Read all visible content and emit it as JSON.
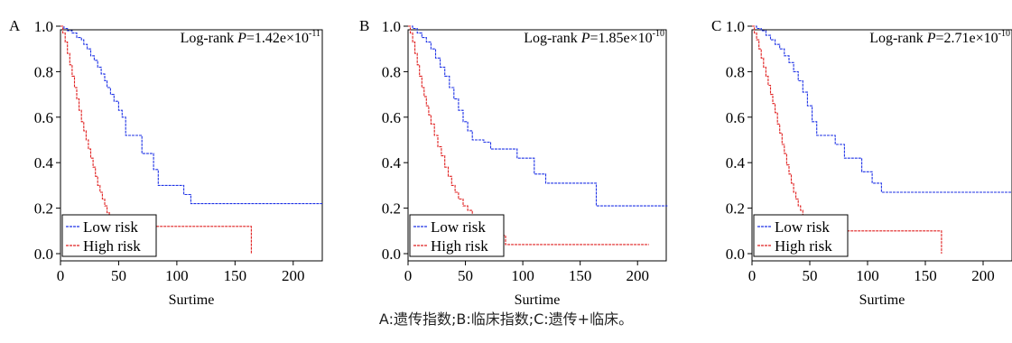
{
  "caption": "A:遗传指数;B:临床指数;C:遗传+临床。",
  "colors": {
    "low": "#1f33e6",
    "high": "#e02020",
    "axis": "#000000"
  },
  "chart_data": [
    {
      "panel": "A",
      "type": "line",
      "step": true,
      "xlabel": "Surtime",
      "ylabel": "",
      "xlim": [
        0,
        225
      ],
      "ylim": [
        0,
        1.0
      ],
      "xticks": [
        "0",
        "50",
        "100",
        "150",
        "200"
      ],
      "yticks": [
        "0.0",
        "0.2",
        "0.4",
        "0.6",
        "0.8",
        "1.0"
      ],
      "annotation": {
        "prefix": "Log-rank ",
        "italic": "P",
        "value": "=1.42e×10",
        "exp": "-11"
      },
      "legend": {
        "position": "bottom-left"
      },
      "series": [
        {
          "name": "Low risk",
          "color_key": "low",
          "x": [
            0,
            3,
            6,
            10,
            14,
            18,
            20,
            23,
            26,
            29,
            32,
            35,
            38,
            40,
            43,
            46,
            50,
            53,
            56,
            60,
            64,
            70,
            77,
            80,
            84,
            90,
            100,
            106,
            112,
            225
          ],
          "y": [
            1.0,
            0.99,
            0.98,
            0.97,
            0.95,
            0.94,
            0.92,
            0.9,
            0.87,
            0.85,
            0.82,
            0.79,
            0.76,
            0.73,
            0.7,
            0.67,
            0.63,
            0.6,
            0.52,
            0.52,
            0.52,
            0.44,
            0.44,
            0.37,
            0.3,
            0.3,
            0.3,
            0.26,
            0.22,
            0.22
          ]
        },
        {
          "name": "High risk",
          "color_key": "high",
          "x": [
            0,
            2,
            4,
            6,
            8,
            10,
            12,
            14,
            16,
            18,
            20,
            22,
            24,
            26,
            28,
            30,
            32,
            34,
            36,
            38,
            40,
            42,
            44,
            46,
            50,
            55,
            164
          ],
          "y": [
            1.0,
            0.97,
            0.93,
            0.88,
            0.83,
            0.78,
            0.73,
            0.68,
            0.63,
            0.58,
            0.54,
            0.5,
            0.46,
            0.42,
            0.38,
            0.34,
            0.3,
            0.27,
            0.24,
            0.21,
            0.18,
            0.16,
            0.14,
            0.12,
            0.12,
            0.12,
            0.0
          ]
        }
      ]
    },
    {
      "panel": "B",
      "type": "line",
      "step": true,
      "xlabel": "Surtime",
      "ylabel": "",
      "xlim": [
        0,
        225
      ],
      "ylim": [
        0,
        1.0
      ],
      "xticks": [
        "0",
        "50",
        "100",
        "150",
        "200"
      ],
      "yticks": [
        "0.0",
        "0.2",
        "0.4",
        "0.6",
        "0.8",
        "1.0"
      ],
      "annotation": {
        "prefix": "Log-rank ",
        "italic": "P",
        "value": "=1.85e×10",
        "exp": "-10"
      },
      "legend": {
        "position": "bottom-left"
      },
      "series": [
        {
          "name": "Low risk",
          "color_key": "low",
          "x": [
            0,
            4,
            8,
            12,
            16,
            20,
            24,
            28,
            32,
            36,
            40,
            44,
            48,
            52,
            56,
            60,
            66,
            72,
            80,
            88,
            95,
            110,
            120,
            140,
            164,
            226
          ],
          "y": [
            1.0,
            0.99,
            0.97,
            0.95,
            0.93,
            0.9,
            0.86,
            0.82,
            0.78,
            0.73,
            0.68,
            0.63,
            0.58,
            0.54,
            0.5,
            0.5,
            0.49,
            0.46,
            0.46,
            0.46,
            0.42,
            0.35,
            0.31,
            0.31,
            0.21,
            0.21
          ]
        },
        {
          "name": "High risk",
          "color_key": "high",
          "x": [
            0,
            2,
            4,
            6,
            8,
            10,
            12,
            14,
            16,
            18,
            20,
            23,
            26,
            29,
            32,
            35,
            38,
            41,
            44,
            48,
            52,
            56,
            62,
            70,
            80,
            85,
            210
          ],
          "y": [
            1.0,
            0.97,
            0.93,
            0.88,
            0.83,
            0.78,
            0.73,
            0.69,
            0.65,
            0.61,
            0.57,
            0.52,
            0.47,
            0.43,
            0.38,
            0.34,
            0.3,
            0.27,
            0.24,
            0.21,
            0.19,
            0.16,
            0.16,
            0.16,
            0.08,
            0.04,
            0.04
          ]
        }
      ]
    },
    {
      "panel": "C",
      "type": "line",
      "step": true,
      "xlabel": "Surtime",
      "ylabel": "",
      "xlim": [
        0,
        225
      ],
      "ylim": [
        0,
        1.0
      ],
      "xticks": [
        "0",
        "50",
        "100",
        "150",
        "200"
      ],
      "yticks": [
        "0.0",
        "0.2",
        "0.4",
        "0.6",
        "0.8",
        "1.0"
      ],
      "annotation": {
        "prefix": "Log-rank ",
        "italic": "P",
        "value": "=2.71e×10",
        "exp": "-10"
      },
      "legend": {
        "position": "bottom-left"
      },
      "series": [
        {
          "name": "Low risk",
          "color_key": "low",
          "x": [
            0,
            4,
            8,
            12,
            16,
            20,
            24,
            28,
            32,
            36,
            40,
            44,
            48,
            52,
            56,
            60,
            66,
            72,
            80,
            88,
            95,
            104,
            112,
            230
          ],
          "y": [
            1.0,
            0.99,
            0.98,
            0.96,
            0.94,
            0.92,
            0.9,
            0.87,
            0.84,
            0.8,
            0.76,
            0.71,
            0.65,
            0.58,
            0.52,
            0.52,
            0.52,
            0.48,
            0.42,
            0.42,
            0.36,
            0.31,
            0.27,
            0.27
          ]
        },
        {
          "name": "High risk",
          "color_key": "high",
          "x": [
            0,
            2,
            4,
            6,
            8,
            10,
            12,
            14,
            16,
            18,
            20,
            22,
            24,
            26,
            28,
            30,
            32,
            34,
            36,
            38,
            40,
            42,
            44,
            48,
            55,
            60,
            80,
            164
          ],
          "y": [
            1.0,
            0.97,
            0.94,
            0.9,
            0.86,
            0.82,
            0.78,
            0.74,
            0.7,
            0.66,
            0.62,
            0.57,
            0.53,
            0.48,
            0.44,
            0.39,
            0.35,
            0.31,
            0.27,
            0.24,
            0.21,
            0.19,
            0.17,
            0.15,
            0.12,
            0.1,
            0.1,
            0.0
          ]
        }
      ]
    }
  ]
}
